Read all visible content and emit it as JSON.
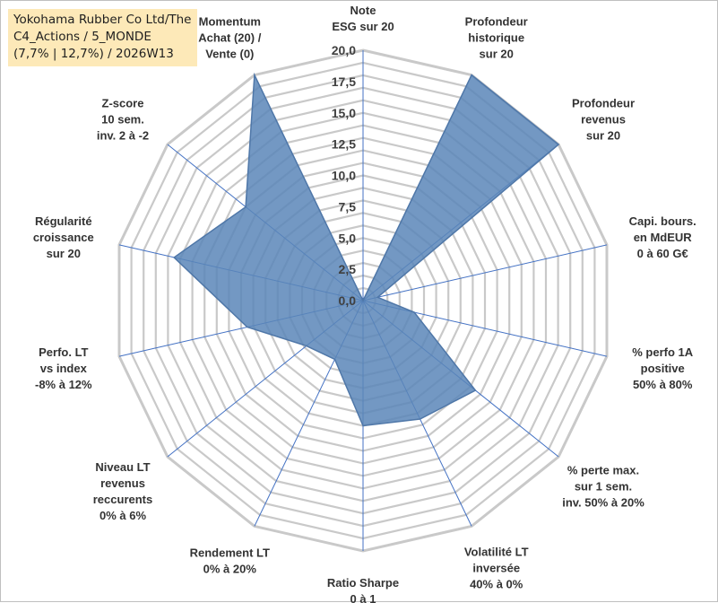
{
  "title": {
    "line1": "Yokohama Rubber Co Ltd/The",
    "line2": "C4_Actions / 5_MONDE",
    "line3": "(7,7% | 12,7%) / 2026W13"
  },
  "colors": {
    "fill": "#5b86b9",
    "stroke": "#4f77a8",
    "grid": "#c9c9c9",
    "spoke": "#4472c4",
    "title_bg": "#fde9b8"
  },
  "chart_data": {
    "type": "radar",
    "title": "Yokohama Rubber Co Ltd/The C4_Actions / 5_MONDE (7,7% | 12,7%) / 2026W13",
    "rlim": [
      0,
      20
    ],
    "ticks": [
      "0,0",
      "2,5",
      "5,0",
      "7,5",
      "10,0",
      "12,5",
      "15,0",
      "17,5",
      "20,0"
    ],
    "tick_values": [
      0,
      2.5,
      5,
      7.5,
      10,
      12.5,
      15,
      17.5,
      20
    ],
    "grid": true,
    "axes": [
      {
        "label": [
          "Note",
          "ESG sur 20"
        ],
        "value": 0
      },
      {
        "label": [
          "Profondeur",
          "historique",
          "sur 20"
        ],
        "value": 20
      },
      {
        "label": [
          "Profondeur",
          "revenus",
          "sur 20"
        ],
        "value": 20
      },
      {
        "label": [
          "Capi. bours.",
          "en MdEUR",
          "0 à 60 G€"
        ],
        "value": 1.2
      },
      {
        "label": [
          "% perfo 1A",
          "positive",
          "50% à 80%"
        ],
        "value": 4.2
      },
      {
        "label": [
          "% perte max.",
          "sur 1 sem.",
          "inv. 50% à 20%"
        ],
        "value": 11.5
      },
      {
        "label": [
          "Volatilité LT",
          "inversée",
          "40% à 0%"
        ],
        "value": 10.5
      },
      {
        "label": [
          "Ratio Sharpe",
          "0 à 1"
        ],
        "value": 10
      },
      {
        "label": [
          "Rendement LT",
          "0% à 20%"
        ],
        "value": 5.2
      },
      {
        "label": [
          "Niveau LT",
          "revenus",
          "reccurents",
          "0% à 6%"
        ],
        "value": 5.8
      },
      {
        "label": [
          "Perfo. LT",
          "vs index",
          "-8% à 12%"
        ],
        "value": 9.5
      },
      {
        "label": [
          "Régularité",
          "croissance",
          "sur 20"
        ],
        "value": 15.5
      },
      {
        "label": [
          "Z-score",
          "10 sem.",
          "inv. 2 à -2"
        ],
        "value": 12
      },
      {
        "label": [
          "Momentum",
          "Achat (20) /",
          "Vente (0)"
        ],
        "value": 20
      }
    ]
  }
}
